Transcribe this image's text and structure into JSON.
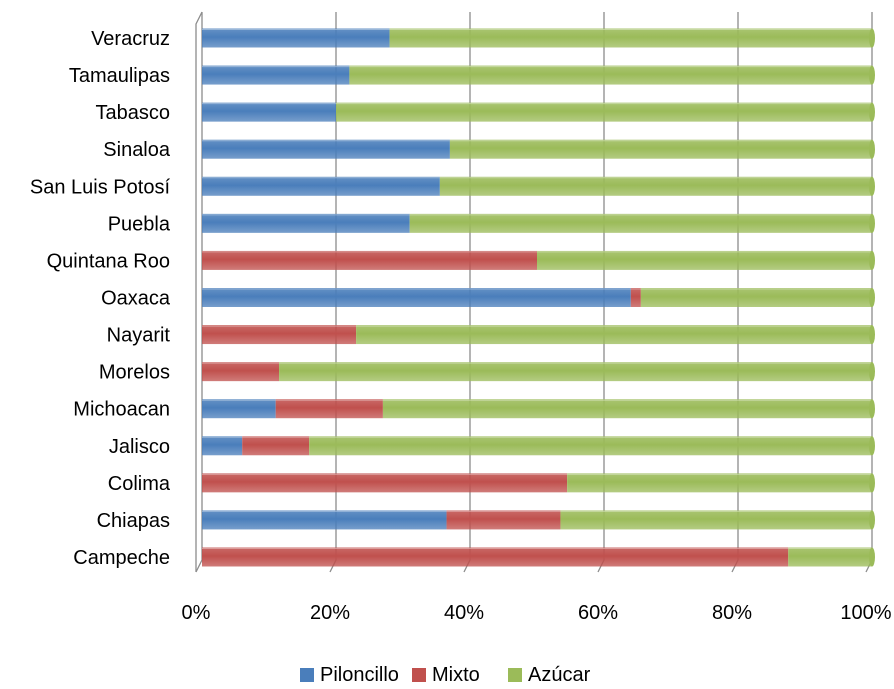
{
  "chart_data": {
    "type": "bar",
    "orientation": "horizontal",
    "stacked": "percent",
    "categories": [
      "Campeche",
      "Chiapas",
      "Colima",
      "Jalisco",
      "Michoacan",
      "Morelos",
      "Nayarit",
      "Oaxaca",
      "Quintana Roo",
      "Puebla",
      "San Luis Potosí",
      "Sinaloa",
      "Tabasco",
      "Tamaulipas",
      "Veracruz"
    ],
    "series": [
      {
        "name": "Piloncillo",
        "color": "#4a7ebb",
        "values": [
          0,
          36.5,
          0,
          6,
          11,
          0,
          0,
          64,
          0,
          31,
          35.5,
          37,
          20,
          22,
          28
        ]
      },
      {
        "name": "Mixto",
        "color": "#c0504d",
        "values": [
          87.5,
          17,
          54.5,
          10,
          16,
          11.5,
          23,
          1.5,
          50,
          0,
          0,
          0,
          0,
          0,
          0
        ]
      },
      {
        "name": "Azúcar",
        "color": "#9bbb59",
        "values": [
          12.5,
          46.5,
          45.5,
          84,
          73,
          88.5,
          77,
          34.5,
          50,
          69,
          64.5,
          63,
          80,
          78,
          72
        ]
      }
    ],
    "x_ticks": [
      "0%",
      "20%",
      "40%",
      "60%",
      "80%",
      "100%"
    ],
    "xlim": [
      0,
      100
    ],
    "grid": true,
    "legend_position": "bottom"
  }
}
